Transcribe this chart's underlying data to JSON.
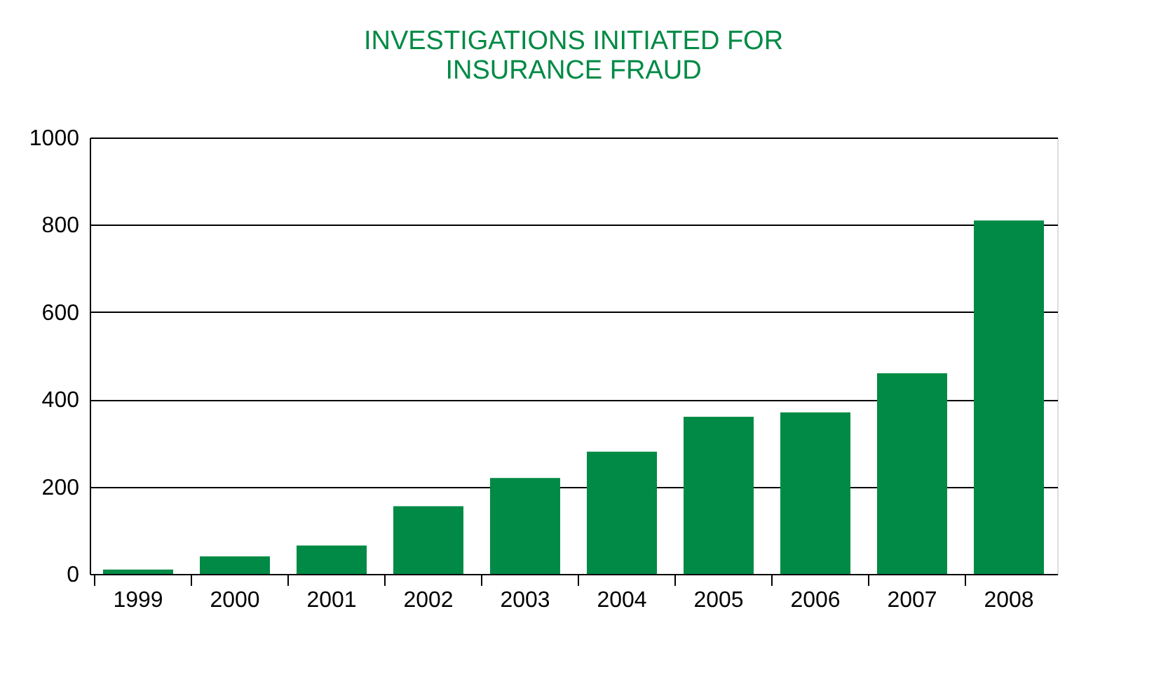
{
  "chart_data": {
    "type": "bar",
    "title": [
      "INVESTIGATIONS INITIATED FOR",
      "INSURANCE FRAUD"
    ],
    "categories": [
      "1999",
      "2000",
      "2001",
      "2002",
      "2003",
      "2004",
      "2005",
      "2006",
      "2007",
      "2008"
    ],
    "values": [
      10,
      40,
      65,
      155,
      220,
      280,
      360,
      370,
      460,
      810
    ],
    "color": "#008a45",
    "ylim": [
      0,
      1000
    ],
    "yticks": [
      0,
      200,
      400,
      600,
      800,
      1000
    ],
    "grid": "y"
  }
}
